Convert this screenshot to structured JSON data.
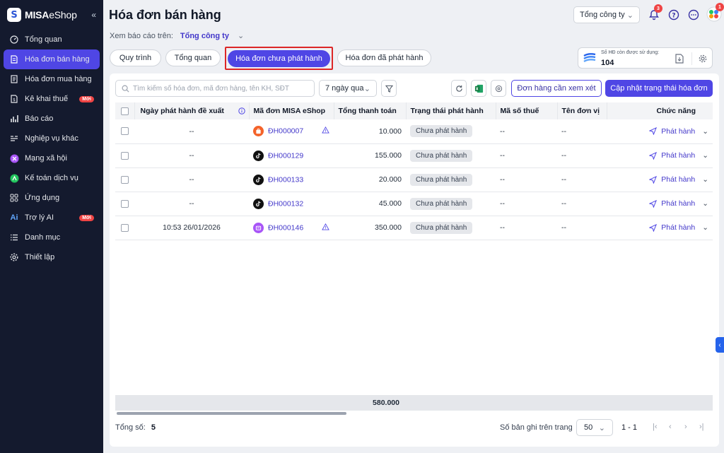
{
  "app": {
    "logo_mark": "S",
    "logo_bold": "MISA",
    "logo_light": "eShop",
    "collapse_label": "«"
  },
  "sidebar": {
    "items": [
      {
        "label": "Tổng quan",
        "icon": "dashboard-icon"
      },
      {
        "label": "Hóa đơn bán hàng",
        "icon": "invoice-icon",
        "active": true
      },
      {
        "label": "Hóa đơn mua hàng",
        "icon": "purchase-invoice-icon"
      },
      {
        "label": "Kê khai thuế",
        "icon": "tax-icon",
        "badge": "Mới"
      },
      {
        "label": "Báo cáo",
        "icon": "report-icon"
      },
      {
        "label": "Nghiệp vụ khác",
        "icon": "operations-icon"
      },
      {
        "label": "Mạng xã hội",
        "icon": "social-icon"
      },
      {
        "label": "Kế toán dịch vụ",
        "icon": "accounting-icon"
      },
      {
        "label": "Ứng dụng",
        "icon": "apps-icon"
      },
      {
        "label": "Trợ lý AI",
        "icon": "ai-icon",
        "icon_text": "Ai",
        "badge": "Mới"
      },
      {
        "label": "Danh mục",
        "icon": "list-icon"
      },
      {
        "label": "Thiết lập",
        "icon": "settings-icon"
      }
    ]
  },
  "header": {
    "title": "Hóa đơn bán hàng",
    "company_select": "Tổng công ty",
    "notification_count": "3",
    "avatar_badge": "1"
  },
  "view_report": {
    "label": "Xem báo cáo trên:",
    "value": "Tổng công ty"
  },
  "tabs": [
    {
      "label": "Quy trình"
    },
    {
      "label": "Tổng quan"
    },
    {
      "label": "Hóa đơn chưa phát hành",
      "active": true
    },
    {
      "label": "Hóa đơn đã phát hành"
    }
  ],
  "quota": {
    "label": "Số HĐ còn được sử dụng:",
    "value": "104"
  },
  "toolbar": {
    "search_placeholder": "Tìm kiếm số hóa đơn, mã đơn hàng, tên KH, SĐT",
    "period": "7 ngày qua",
    "review_button": "Đơn hàng cần xem xét",
    "update_button": "Cập nhật trạng thái hóa đơn"
  },
  "table": {
    "columns": [
      "Ngày phát hành đề xuất",
      "Mã đơn MISA eShop",
      "Tổng thanh toán",
      "Trạng thái phát hành",
      "Mã số thuế",
      "Tên đơn vị",
      "Chức năng"
    ],
    "rows": [
      {
        "date": "--",
        "code": "ĐH000007",
        "source": "shopee",
        "source_color": "#f4632a",
        "warn": true,
        "total": "10.000",
        "status": "Chưa phát hành",
        "tax": "--",
        "unit": "--",
        "action": "Phát hành"
      },
      {
        "date": "--",
        "code": "ĐH000129",
        "source": "tiktok",
        "source_color": "#111111",
        "warn": false,
        "total": "155.000",
        "status": "Chưa phát hành",
        "tax": "--",
        "unit": "--",
        "action": "Phát hành"
      },
      {
        "date": "--",
        "code": "ĐH000133",
        "source": "tiktok",
        "source_color": "#111111",
        "warn": false,
        "total": "20.000",
        "status": "Chưa phát hành",
        "tax": "--",
        "unit": "--",
        "action": "Phát hành"
      },
      {
        "date": "--",
        "code": "ĐH000132",
        "source": "tiktok",
        "source_color": "#111111",
        "warn": false,
        "total": "45.000",
        "status": "Chưa phát hành",
        "tax": "--",
        "unit": "--",
        "action": "Phát hành"
      },
      {
        "date": "10:53 26/01/2026",
        "code": "ĐH000146",
        "source": "pos",
        "source_color": "#a855f7",
        "warn": true,
        "total": "350.000",
        "status": "Chưa phát hành",
        "tax": "--",
        "unit": "--",
        "action": "Phát hành"
      }
    ],
    "sum_total": "580.000"
  },
  "footer": {
    "total_label": "Tổng số:",
    "total_value": "5",
    "per_page_label": "Số bản ghi trên trang",
    "per_page_value": "50",
    "range": "1 - 1"
  },
  "colors": {
    "primary": "#4f46e5",
    "sidebar_bg": "#141a2e",
    "highlight_border": "#dc2626"
  }
}
